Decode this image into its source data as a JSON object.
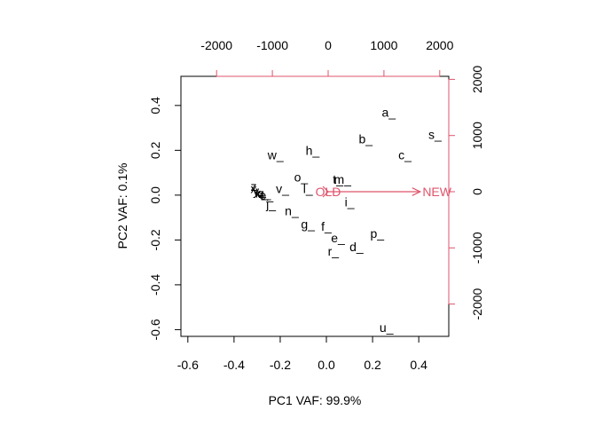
{
  "chart_data": {
    "type": "scatter",
    "title": "",
    "xlabel": "PC1 VAF: 99.9%",
    "ylabel": "PC2 VAF: 0.1%",
    "xlim": [
      -0.63,
      0.53
    ],
    "ylim": [
      -0.63,
      0.53
    ],
    "x_ticks": [
      "-0.6",
      "-0.4",
      "-0.2",
      "0.0",
      "0.2",
      "0.4"
    ],
    "y_ticks": [
      "-0.6",
      "-0.4",
      "-0.2",
      "0.0",
      "0.2",
      "0.4"
    ],
    "top_axis_ticks": [
      "-2000",
      "-1000",
      "0",
      "1000",
      "2000"
    ],
    "right_axis_ticks": [
      "-2000",
      "-1000",
      "0",
      "1000",
      "2000"
    ],
    "secondary_axis_color": "#DF536B",
    "observations": [
      {
        "label": "a_",
        "x": 0.27,
        "y": 0.37
      },
      {
        "label": "s_",
        "x": 0.47,
        "y": 0.27
      },
      {
        "label": "b_",
        "x": 0.17,
        "y": 0.25
      },
      {
        "label": "h_",
        "x": -0.06,
        "y": 0.2
      },
      {
        "label": "c_",
        "x": 0.34,
        "y": 0.18
      },
      {
        "label": "w_",
        "x": -0.22,
        "y": 0.18
      },
      {
        "label": "o_",
        "x": -0.11,
        "y": 0.08
      },
      {
        "label": "t_",
        "x": 0.05,
        "y": 0.07
      },
      {
        "label": "m_",
        "x": 0.07,
        "y": 0.07
      },
      {
        "label": "v_",
        "x": -0.19,
        "y": 0.03
      },
      {
        "label": "l_",
        "x": -0.08,
        "y": 0.03
      },
      {
        "label": "i_",
        "x": 0.1,
        "y": -0.03
      },
      {
        "label": "z_",
        "x": -0.3,
        "y": 0.04
      },
      {
        "label": "x_",
        "x": -0.3,
        "y": 0.03
      },
      {
        "label": "y_",
        "x": -0.29,
        "y": 0.02
      },
      {
        "label": "k_",
        "x": -0.28,
        "y": 0.01
      },
      {
        "label": "q_",
        "x": -0.27,
        "y": 0.01
      },
      {
        "label": "e_",
        "x": -0.26,
        "y": 0.0
      },
      {
        "label": "j_",
        "x": -0.24,
        "y": -0.04
      },
      {
        "label": "n_",
        "x": -0.15,
        "y": -0.07
      },
      {
        "label": "g_",
        "x": -0.08,
        "y": -0.13
      },
      {
        "label": "f_",
        "x": -0.0,
        "y": -0.14
      },
      {
        "label": "p_",
        "x": 0.22,
        "y": -0.17
      },
      {
        "label": "e_",
        "x": 0.05,
        "y": -0.19
      },
      {
        "label": "d_",
        "x": 0.13,
        "y": -0.23
      },
      {
        "label": "r_",
        "x": 0.03,
        "y": -0.25
      },
      {
        "label": "u_",
        "x": 0.26,
        "y": -0.59
      }
    ],
    "variables": [
      {
        "label": "NEW",
        "x": 1650,
        "y": 0,
        "label_x": 1950
      },
      {
        "label": "OLD",
        "x": 0,
        "y": 0,
        "label_x": 0
      }
    ]
  }
}
